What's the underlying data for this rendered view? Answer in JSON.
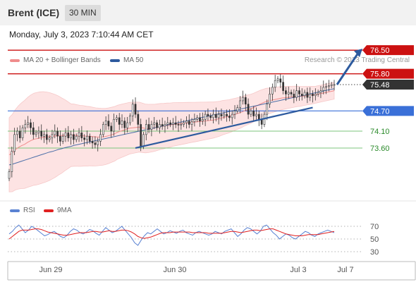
{
  "header": {
    "instrument": "Brent (ICE)",
    "timeframe": "30 MIN"
  },
  "datetime": "Monday, July 3, 2023 7:10:44 AM CET",
  "legend": {
    "ma20": "MA 20 + Bollinger Bands",
    "ma50": "MA 50",
    "rsi": "RSI",
    "ma9": "9MA"
  },
  "credit": "Research © 2023 Trading Central",
  "colors": {
    "ma20": "#f08c8c",
    "ma50": "#2d5a9e",
    "rsi": "#5a82d2",
    "ma9": "#e02020",
    "resistance": "#cc1111",
    "pivot": "#3a70d8",
    "support": "#7cc57c",
    "current": "#333333",
    "bollinger_fill": "#fde0e0"
  },
  "chart_data": [
    {
      "type": "line",
      "title": "",
      "x_labels": [
        "Jun 29",
        "Jun 30",
        "Jul 3",
        "Jul 7"
      ],
      "price_levels": [
        {
          "value": 76.5,
          "label": "76.50",
          "kind": "resistance"
        },
        {
          "value": 75.8,
          "label": "75.80",
          "kind": "resistance"
        },
        {
          "value": 75.48,
          "label": "75.48",
          "kind": "current"
        },
        {
          "value": 74.7,
          "label": "74.70",
          "kind": "pivot"
        },
        {
          "value": 74.1,
          "label": "74.10",
          "kind": "support"
        },
        {
          "value": 73.6,
          "label": "73.60",
          "kind": "support"
        }
      ],
      "ylim": [
        72.2,
        76.9
      ],
      "close": [
        72.9,
        73.5,
        74.0,
        74.1,
        73.9,
        74.2,
        74.3,
        74.35,
        74.2,
        74.0,
        74.05,
        74.1,
        73.95,
        74.0,
        73.85,
        73.9,
        74.0,
        74.1,
        73.95,
        73.8,
        73.95,
        74.05,
        73.9,
        74.0,
        73.85,
        73.95,
        74.05,
        73.9,
        73.85,
        73.95,
        73.8,
        73.75,
        73.7,
        73.8,
        74.0,
        74.3,
        74.4,
        74.25,
        74.1,
        74.45,
        74.5,
        74.3,
        74.4,
        74.2,
        74.35,
        74.55,
        74.9,
        74.6,
        74.3,
        73.65,
        74.0,
        74.3,
        74.15,
        74.3,
        74.35,
        74.2,
        74.3,
        74.25,
        74.3,
        74.35,
        74.3,
        74.35,
        74.3,
        74.28,
        74.3,
        74.35,
        74.4,
        74.3,
        74.38,
        74.45,
        74.5,
        74.4,
        74.45,
        74.6,
        74.55,
        74.5,
        74.6,
        74.5,
        74.6,
        74.55,
        74.6,
        74.55,
        74.5,
        74.6,
        74.7,
        74.8,
        75.0,
        75.1,
        74.9,
        74.6,
        74.7,
        74.55,
        74.6,
        74.45,
        74.3,
        74.6,
        74.9,
        75.2,
        75.4,
        75.6,
        75.65,
        75.55,
        75.3,
        75.2,
        75.25,
        75.2,
        75.1,
        75.3,
        75.2,
        75.15,
        75.25,
        75.1,
        75.2,
        75.15,
        75.2,
        75.25,
        75.3,
        75.4,
        75.42,
        75.45,
        75.48,
        75.48
      ],
      "ma20": [
        73.4,
        73.45,
        73.55,
        73.62,
        73.67,
        73.71,
        73.77,
        73.82,
        73.86,
        73.88,
        73.9,
        73.92,
        73.93,
        73.94,
        73.95,
        73.96,
        73.97,
        73.97,
        73.98,
        73.98,
        73.98,
        73.98,
        73.97,
        73.96,
        73.96,
        73.95,
        73.95,
        73.94,
        73.93,
        73.93,
        73.93,
        73.94,
        73.96,
        73.99,
        74.02,
        74.07,
        74.1,
        74.13,
        74.16,
        74.19,
        74.2,
        74.21,
        74.22,
        74.2,
        74.18,
        74.18,
        74.19,
        74.2,
        74.22,
        74.24,
        74.25,
        74.27,
        74.28,
        74.3,
        74.31,
        74.32,
        74.33,
        74.34,
        74.35,
        74.36,
        74.37,
        74.38,
        74.39,
        74.4,
        74.41,
        74.42,
        74.43,
        74.45,
        74.47,
        74.5,
        74.52,
        74.54,
        74.57,
        74.6,
        74.63,
        74.66,
        74.7,
        74.73,
        74.76,
        74.8,
        74.85,
        74.9,
        74.94,
        74.98,
        75.0,
        75.02,
        75.04,
        75.06,
        75.08,
        75.09,
        75.1,
        75.11,
        75.12,
        75.13,
        75.13,
        75.14,
        75.15,
        75.16,
        75.17,
        75.18,
        75.2,
        75.22,
        75.24,
        75.26,
        75.28,
        75.3
      ],
      "ma50": [
        73.1,
        73.12,
        73.15,
        73.18,
        73.21,
        73.24,
        73.27,
        73.3,
        73.33,
        73.36,
        73.39,
        73.42,
        73.45,
        73.48,
        73.5,
        73.53,
        73.56,
        73.58,
        73.61,
        73.63,
        73.65,
        73.68,
        73.7,
        73.72,
        73.74,
        73.76,
        73.78,
        73.8,
        73.82,
        73.84,
        73.86,
        73.88,
        73.9,
        73.92,
        73.94,
        73.96,
        73.98,
        74.0,
        74.02,
        74.04,
        74.06,
        74.08,
        74.1,
        74.12,
        74.14,
        74.16,
        74.18,
        74.2,
        74.22,
        74.24,
        74.26,
        74.28,
        74.3,
        74.32,
        74.34,
        74.36,
        74.38,
        74.4,
        74.42,
        74.44,
        74.46,
        74.48,
        74.5,
        74.52,
        74.54,
        74.56,
        74.58,
        74.6,
        74.62,
        74.64,
        74.66,
        74.68,
        74.7,
        74.72,
        74.74,
        74.76,
        74.78,
        74.8,
        74.82,
        74.84,
        74.86,
        74.88,
        74.9,
        74.92,
        74.94,
        74.96,
        74.98,
        75.0,
        75.02,
        75.04,
        75.06,
        75.08,
        75.1,
        75.12,
        75.14,
        75.16,
        75.18,
        75.2,
        75.22,
        75.24,
        75.26,
        75.28,
        75.3,
        75.32,
        75.34,
        75.36
      ],
      "trendlines": [
        {
          "from": [
            47,
            73.6
          ],
          "to": [
            113,
            74.8
          ]
        }
      ]
    },
    {
      "type": "line",
      "title": "",
      "y_ticks": [
        70,
        50,
        30
      ],
      "ylim": [
        20,
        80
      ],
      "series": [
        {
          "name": "RSI",
          "values": [
            58,
            62,
            68,
            72,
            66,
            60,
            64,
            70,
            67,
            63,
            59,
            55,
            57,
            60,
            62,
            58,
            54,
            52,
            56,
            62,
            66,
            64,
            60,
            58,
            61,
            65,
            63,
            59,
            56,
            62,
            68,
            64,
            60,
            62,
            66,
            70,
            64,
            58,
            52,
            44,
            40,
            48,
            55,
            60,
            58,
            62,
            66,
            62,
            58,
            60,
            63,
            61,
            59,
            62,
            64,
            60,
            58,
            56,
            60,
            62,
            60,
            58,
            56,
            58,
            62,
            60,
            58,
            62,
            64,
            66,
            60,
            54,
            58,
            64,
            68,
            66,
            62,
            58,
            62,
            70,
            72,
            66,
            60,
            56,
            50,
            54,
            58,
            56,
            52,
            50,
            54,
            58,
            62,
            60,
            56,
            54,
            58,
            60,
            62,
            64,
            62,
            60
          ]
        },
        {
          "name": "9MA",
          "values": [
            50,
            54,
            58,
            62,
            64,
            64,
            64,
            65,
            66,
            66,
            65,
            63,
            61,
            60,
            59,
            58,
            57,
            56,
            56,
            57,
            58,
            59,
            60,
            60,
            60,
            61,
            62,
            62,
            61,
            61,
            62,
            63,
            62,
            62,
            63,
            64,
            64,
            63,
            61,
            58,
            54,
            52,
            51,
            52,
            53,
            55,
            57,
            59,
            60,
            60,
            60,
            61,
            61,
            61,
            61,
            61,
            61,
            60,
            60,
            60,
            60,
            60,
            59,
            59,
            59,
            59,
            59,
            60,
            61,
            62,
            62,
            61,
            60,
            61,
            62,
            63,
            64,
            64,
            63,
            64,
            65,
            66,
            66,
            64,
            62,
            60,
            58,
            57,
            56,
            55,
            55,
            55,
            56,
            57,
            57,
            57,
            57,
            58,
            59,
            60,
            61,
            62
          ]
        }
      ]
    }
  ]
}
